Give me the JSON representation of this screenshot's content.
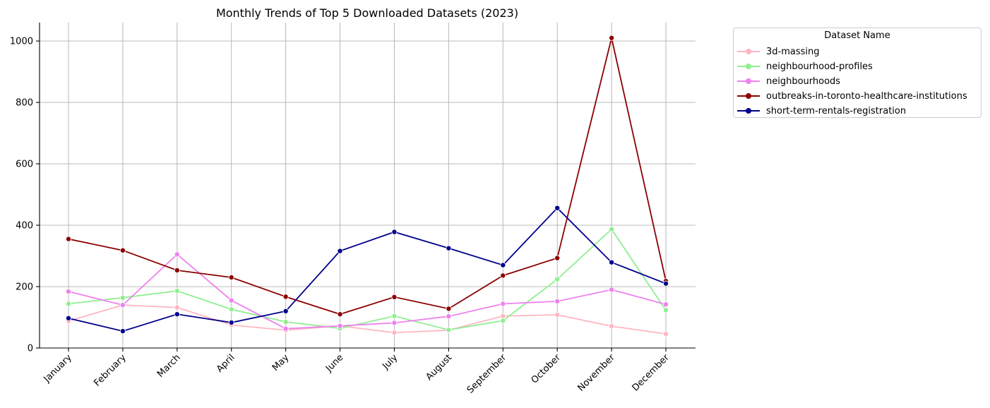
{
  "chart_data": {
    "type": "line",
    "title": "Monthly Trends of Top 5 Downloaded Datasets (2023)",
    "xlabel": "",
    "ylabel": "",
    "categories": [
      "January",
      "February",
      "March",
      "April",
      "May",
      "June",
      "July",
      "August",
      "September",
      "October",
      "November",
      "December"
    ],
    "ylim": [
      0,
      1060
    ],
    "yticks": [
      0,
      200,
      400,
      600,
      800,
      1000
    ],
    "grid": true,
    "legend": {
      "title": "Dataset Name",
      "placement": "outside-top-right"
    },
    "series": [
      {
        "name": "3d-massing",
        "color": "#ffb6c1",
        "values": [
          88,
          140,
          132,
          75,
          58,
          72,
          50,
          58,
          104,
          108,
          71,
          46
        ]
      },
      {
        "name": "neighbourhood-profiles",
        "color": "#90ee90",
        "values": [
          144,
          164,
          186,
          126,
          85,
          64,
          104,
          59,
          89,
          224,
          387,
          123
        ]
      },
      {
        "name": "neighbourhoods",
        "color": "#ee82ee",
        "values": [
          184,
          140,
          305,
          155,
          63,
          72,
          82,
          103,
          144,
          152,
          190,
          142
        ]
      },
      {
        "name": "outbreaks-in-toronto-healthcare-institutions",
        "color": "#8b0000",
        "values": [
          355,
          318,
          253,
          230,
          167,
          110,
          166,
          128,
          236,
          293,
          1010,
          218
        ]
      },
      {
        "name": "short-term-rentals-registration",
        "color": "#00008b",
        "values": [
          97,
          55,
          110,
          83,
          120,
          316,
          378,
          325,
          270,
          456,
          279,
          210
        ]
      }
    ]
  }
}
